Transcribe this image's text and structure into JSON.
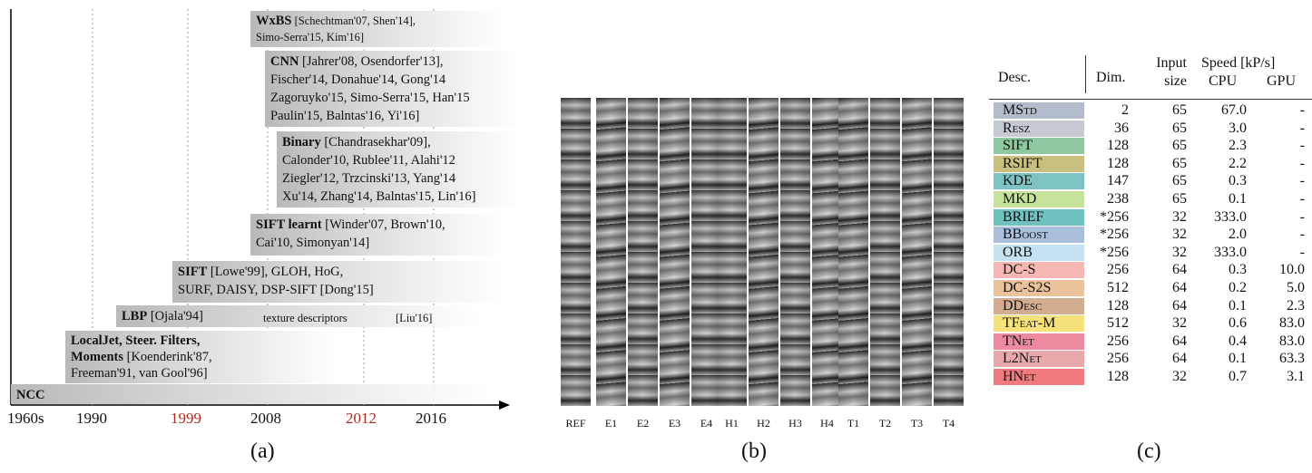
{
  "timeline": {
    "boxes": [
      {
        "title": "WxBS",
        "refs": " [Schechtman'07, Shen'14],",
        "line2": "Simo-Serra'15, Kim'16]"
      },
      {
        "title": "CNN",
        "refs": " [Jahrer'08, Osendorfer'13],",
        "line2": "Fischer'14, Donahue'14, Gong'14",
        "line3": "Zagoruyko'15, Simo-Serra'15, Han'15",
        "line4": "Paulin'15, Balntas'16, Yi'16]"
      },
      {
        "title": "Binary",
        "refs": " [Chandrasekhar'09],",
        "line2": "Calonder'10, Rublee'11, Alahi'12",
        "line3": "Ziegler'12, Trzcinski'13, Yang'14",
        "line4": "Xu'14, Zhang'14, Balntas'15, Lin'16]"
      },
      {
        "title": "SIFT learnt",
        "refs": " [Winder'07, Brown'10,",
        "line2": "Cai'10, Simonyan'14]"
      },
      {
        "title": "SIFT",
        "refs": " [Lowe'99], GLOH, HoG,",
        "line2": "SURF, DAISY, DSP-SIFT [Dong'15]"
      },
      {
        "title": "LBP",
        "refs": " [Ojala'94]",
        "mid": "texture descriptors",
        "right": "[Liu'16]"
      },
      {
        "title": "LocalJet, Steer. Filters,",
        "title2": "Moments",
        "refs": " [Koenderink'87,",
        "line3": "Freeman'91, van Gool'96]"
      },
      {
        "title": "NCC"
      }
    ],
    "years": [
      "1960s",
      "1990",
      "1999",
      "2008",
      "2012",
      "2016"
    ],
    "highlight_color": "#b3261e"
  },
  "patches": {
    "labels": [
      "REF",
      "E1",
      "E2",
      "E3",
      "E4",
      "H1",
      "H2",
      "H3",
      "H4",
      "T1",
      "T2",
      "T3",
      "T4"
    ]
  },
  "table": {
    "headers": {
      "desc": "Desc.",
      "dim": "Dim.",
      "input1": "Input",
      "input2": "size",
      "speed": "Speed [kP/s]",
      "cpu": "CPU",
      "gpu": "GPU"
    },
    "rows": [
      {
        "desc": "MStd",
        "dim": "2",
        "input": "65",
        "cpu": "67.0",
        "gpu": "-",
        "color": "#b3bccb"
      },
      {
        "desc": "Resz",
        "dim": "36",
        "input": "65",
        "cpu": "3.0",
        "gpu": "-",
        "color": "#c5cad3"
      },
      {
        "desc": "SIFT",
        "dim": "128",
        "input": "65",
        "cpu": "2.3",
        "gpu": "-",
        "color": "#8fc7a0"
      },
      {
        "desc": "RSIFT",
        "dim": "128",
        "input": "65",
        "cpu": "2.2",
        "gpu": "-",
        "color": "#c9c07f"
      },
      {
        "desc": "KDE",
        "dim": "147",
        "input": "65",
        "cpu": "0.3",
        "gpu": "-",
        "color": "#7dc3c3"
      },
      {
        "desc": "MKD",
        "dim": "238",
        "input": "65",
        "cpu": "0.1",
        "gpu": "-",
        "color": "#c6e29b"
      },
      {
        "desc": "BRIEF",
        "dim": "*256",
        "input": "32",
        "cpu": "333.0",
        "gpu": "-",
        "color": "#6fc2c0"
      },
      {
        "desc": "BBoost",
        "dim": "*256",
        "input": "32",
        "cpu": "2.0",
        "gpu": "-",
        "color": "#a9bfdc"
      },
      {
        "desc": "ORB",
        "dim": "*256",
        "input": "32",
        "cpu": "333.0",
        "gpu": "-",
        "color": "#c4e2f2"
      },
      {
        "desc": "DC-S",
        "dim": "256",
        "input": "64",
        "cpu": "0.3",
        "gpu": "10.0",
        "color": "#f7b7b2"
      },
      {
        "desc": "DC-S2S",
        "dim": "512",
        "input": "64",
        "cpu": "0.2",
        "gpu": "5.0",
        "color": "#eac39c"
      },
      {
        "desc": "DDesc",
        "dim": "128",
        "input": "64",
        "cpu": "0.1",
        "gpu": "2.3",
        "color": "#d3ad91"
      },
      {
        "desc": "TFeat-M",
        "dim": "512",
        "input": "32",
        "cpu": "0.6",
        "gpu": "83.0",
        "color": "#f6e27a"
      },
      {
        "desc": "TNet",
        "dim": "256",
        "input": "64",
        "cpu": "0.4",
        "gpu": "83.0",
        "color": "#ee8aa0"
      },
      {
        "desc": "L2Net",
        "dim": "256",
        "input": "64",
        "cpu": "0.1",
        "gpu": "63.3",
        "color": "#e9a9ac"
      },
      {
        "desc": "HNet",
        "dim": "128",
        "input": "32",
        "cpu": "0.7",
        "gpu": "3.1",
        "color": "#f07a7d"
      }
    ]
  },
  "captions": {
    "a": "(a)",
    "b": "(b)",
    "c": "(c)"
  }
}
